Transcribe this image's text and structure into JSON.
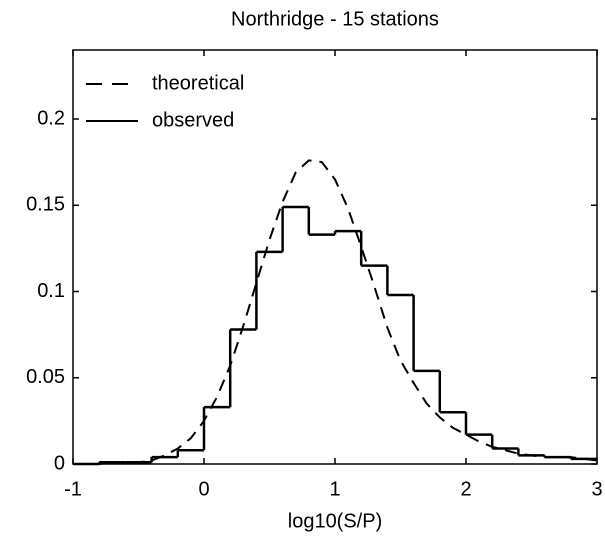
{
  "chart_data": {
    "type": "histogram",
    "title": "Northridge - 15 stations",
    "x_label": "log10(S/P)",
    "xlim": [
      -1,
      3
    ],
    "ylim": [
      0,
      0.24
    ],
    "xticks": [
      -1,
      0,
      1,
      2,
      3
    ],
    "yticks": [
      0,
      0.05,
      0.1,
      0.15,
      0.2
    ],
    "legend": "upper left",
    "series": [
      {
        "name": "theoretical",
        "type": "line",
        "color": "#000000",
        "dashed": true,
        "x": [
          -1,
          -0.9,
          -0.8,
          -0.7,
          -0.6,
          -0.5,
          -0.4,
          -0.3,
          -0.2,
          -0.1,
          0,
          0.1,
          0.2,
          0.3,
          0.4,
          0.5,
          0.6,
          0.7,
          0.8,
          0.9,
          1.0,
          1.1,
          1.2,
          1.3,
          1.4,
          1.5,
          1.6,
          1.7,
          1.8,
          1.9,
          2.0,
          2.1,
          2.2,
          2.3,
          2.4,
          2.5,
          2.6,
          2.7,
          2.8,
          2.9,
          3.0
        ],
        "values": [
          0,
          0,
          0,
          0.001,
          0.001,
          0.001,
          0.002,
          0.005,
          0.009,
          0.015,
          0.025,
          0.039,
          0.057,
          0.08,
          0.105,
          0.13,
          0.152,
          0.169,
          0.176,
          0.175,
          0.165,
          0.148,
          0.126,
          0.103,
          0.079,
          0.06,
          0.047,
          0.035,
          0.027,
          0.021,
          0.017,
          0.013,
          0.01,
          0.008,
          0.006,
          0.005,
          0.004,
          0.004,
          0.004,
          0.003,
          0.002
        ]
      },
      {
        "name": "observed",
        "type": "histogram",
        "color": "#000000",
        "bins": [
          -1,
          -0.8,
          -0.6,
          -0.4,
          -0.2,
          0,
          0.2,
          0.4,
          0.6,
          0.8,
          1.0,
          1.2,
          1.4,
          1.6,
          1.8,
          2.0,
          2.2,
          2.4,
          2.6,
          2.8,
          3.0
        ],
        "values": [
          0,
          0.001,
          0.001,
          0.004,
          0.008,
          0.033,
          0.078,
          0.123,
          0.149,
          0.133,
          0.135,
          0.115,
          0.098,
          0.054,
          0.03,
          0.017,
          0.009,
          0.005,
          0.004,
          0.003
        ]
      }
    ]
  }
}
